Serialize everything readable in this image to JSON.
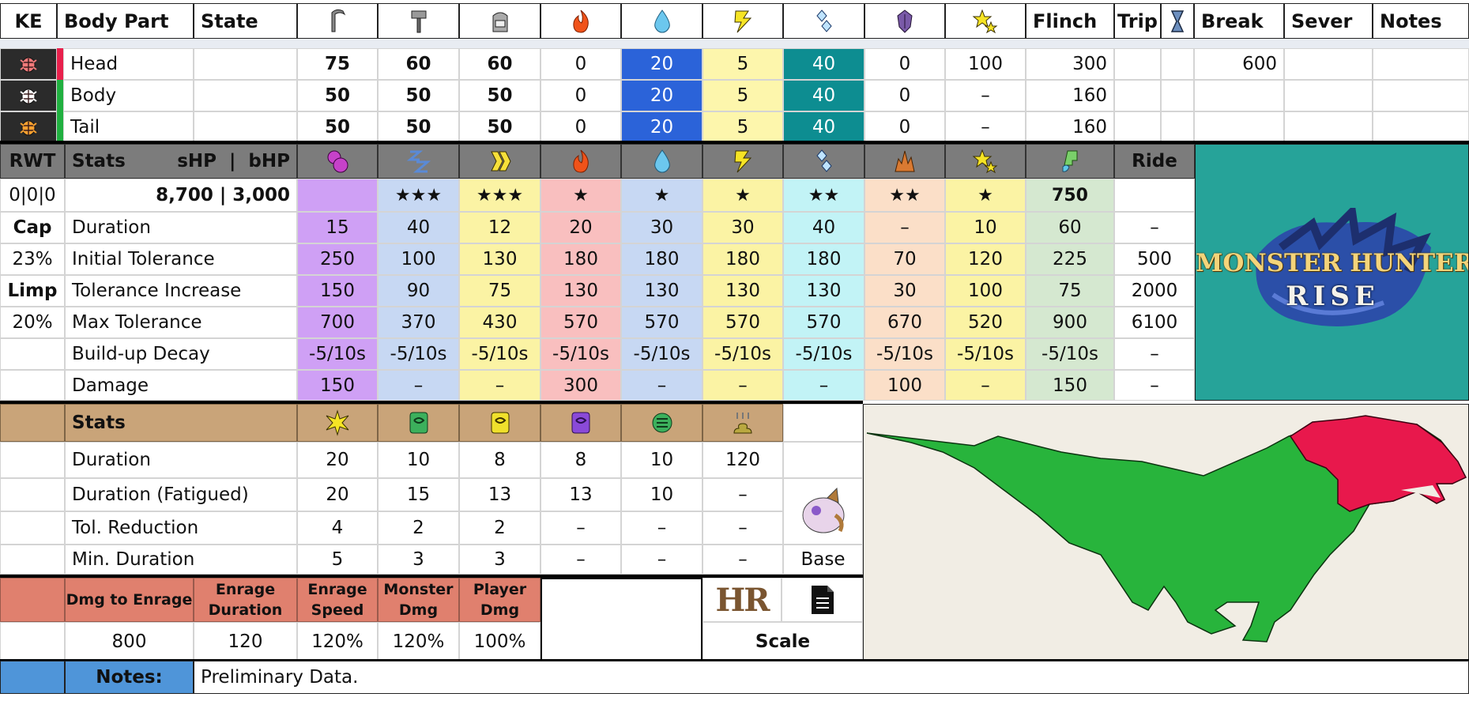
{
  "weakness_table": {
    "headers": {
      "ke": "KE",
      "body_part": "Body Part",
      "state": "State",
      "flinch": "Flinch",
      "trip": "Trip",
      "break": "Break",
      "sever": "Sever",
      "notes": "Notes"
    },
    "header_icons": [
      "sever-weapon-icon",
      "blunt-weapon-icon",
      "shot-weapon-icon",
      "fire-icon",
      "water-icon",
      "thunder-icon",
      "ice-icon",
      "dragon-icon",
      "stun-icon"
    ],
    "rows": [
      {
        "part": "Head",
        "sever": "75",
        "blunt": "60",
        "shot": "60",
        "fire": "0",
        "water": "20",
        "thunder": "5",
        "ice": "40",
        "dragon": "0",
        "stun": "100",
        "flinch": "300",
        "break": "600",
        "marker_color": "#e8204c",
        "bug_color": "#f07a7a"
      },
      {
        "part": "Body",
        "sever": "50",
        "blunt": "50",
        "shot": "50",
        "fire": "0",
        "water": "20",
        "thunder": "5",
        "ice": "40",
        "dragon": "0",
        "stun": "–",
        "flinch": "160",
        "break": "",
        "marker_color": "#20b040",
        "bug_color": "#ffffff"
      },
      {
        "part": "Tail",
        "sever": "50",
        "blunt": "50",
        "shot": "50",
        "fire": "0",
        "water": "20",
        "thunder": "5",
        "ice": "40",
        "dragon": "0",
        "stun": "–",
        "flinch": "160",
        "break": "",
        "marker_color": "#20b040",
        "bug_color": "#f5a030"
      }
    ]
  },
  "status_table": {
    "rwt_label": "RWT",
    "stats_label": "Stats",
    "hp_label": "sHP  |  bHP",
    "ride_label": "Ride",
    "header_icons": [
      "poison-icon",
      "sleep-icon",
      "paralysis-icon",
      "fire-blight-icon",
      "water-blight-icon",
      "thunder-blight-icon",
      "ice-blight-icon",
      "blast-icon",
      "stun-icon",
      "exhaust-icon"
    ],
    "rwt_value": "0|0|0",
    "hp_value": "8,700 | 3,000",
    "stars": [
      "",
      "★★★",
      "★★★",
      "★",
      "★",
      "★",
      "★★",
      "★★",
      "★",
      "750",
      ""
    ],
    "side": [
      {
        "text": "Cap",
        "bold": true
      },
      {
        "text": "23%",
        "bold": false
      },
      {
        "text": "Limp",
        "bold": true
      },
      {
        "text": "20%",
        "bold": false
      },
      {
        "text": "",
        "bold": false
      },
      {
        "text": "",
        "bold": false
      }
    ],
    "rows": [
      {
        "label": "Duration",
        "values": [
          "15",
          "40",
          "12",
          "20",
          "30",
          "30",
          "40",
          "–",
          "10",
          "60",
          "–"
        ]
      },
      {
        "label": "Initial Tolerance",
        "values": [
          "250",
          "100",
          "130",
          "180",
          "180",
          "180",
          "180",
          "70",
          "120",
          "225",
          "500"
        ]
      },
      {
        "label": "Tolerance Increase",
        "values": [
          "150",
          "90",
          "75",
          "130",
          "130",
          "130",
          "130",
          "30",
          "100",
          "75",
          "2000"
        ]
      },
      {
        "label": "Max Tolerance",
        "values": [
          "700",
          "370",
          "430",
          "570",
          "570",
          "570",
          "570",
          "670",
          "520",
          "900",
          "6100"
        ]
      },
      {
        "label": "Build-up Decay",
        "values": [
          "-5/10s",
          "-5/10s",
          "-5/10s",
          "-5/10s",
          "-5/10s",
          "-5/10s",
          "-5/10s",
          "-5/10s",
          "-5/10s",
          "-5/10s",
          "–"
        ]
      },
      {
        "label": "Damage",
        "values": [
          "150",
          "–",
          "–",
          "300",
          "–",
          "–",
          "–",
          "100",
          "–",
          "150",
          "–"
        ]
      }
    ],
    "column_colors": [
      "#cfa0f5",
      "#c7d8f3",
      "#fbf3a4",
      "#f9bfbf",
      "#c7d8f3",
      "#fbf3a4",
      "#c2f3f6",
      "#fbdfc8",
      "#fbf3a4",
      "#d5e8d0",
      "#ffffff"
    ]
  },
  "logo": {
    "line1": "MONSTER HUNTER",
    "line2": "RISE",
    "bg_color": "#26a399"
  },
  "trap_table": {
    "stats_label": "Stats",
    "header_icons": [
      "flash-icon",
      "shock-trap-icon",
      "pitfall-trap-icon",
      "sonic-icon",
      "tranq-icon",
      "dung-icon"
    ],
    "rows": [
      {
        "label": "Duration",
        "values": [
          "20",
          "10",
          "8",
          "8",
          "10",
          "120"
        ]
      },
      {
        "label": "Duration (Fatigued)",
        "values": [
          "20",
          "15",
          "13",
          "13",
          "10",
          "–"
        ]
      },
      {
        "label": "Tol. Reduction",
        "values": [
          "4",
          "2",
          "2",
          "–",
          "–",
          "–"
        ]
      },
      {
        "label": "Min. Duration",
        "values": [
          "5",
          "3",
          "3",
          "–",
          "–",
          "–"
        ]
      }
    ],
    "base_label": "Base"
  },
  "rage_table": {
    "headers": [
      "Dmg to Enrage",
      "Enrage Duration",
      "Enrage Speed",
      "Monster Dmg",
      "Player Dmg"
    ],
    "values": [
      "800",
      "120",
      "120%",
      "120%",
      "100%"
    ],
    "hr_label": "HR",
    "scale_label": "Scale"
  },
  "notes": {
    "label": "Notes:",
    "text": "Preliminary Data."
  },
  "colors": {
    "dark_header": "#7c7c7c",
    "tan_header": "#c9a479",
    "salmon_header": "#e0806e",
    "notes_blue": "#4f95d9",
    "monster_green": "#28b43c",
    "monster_red": "#e8184c",
    "diagram_bg": "#f1ede4"
  }
}
